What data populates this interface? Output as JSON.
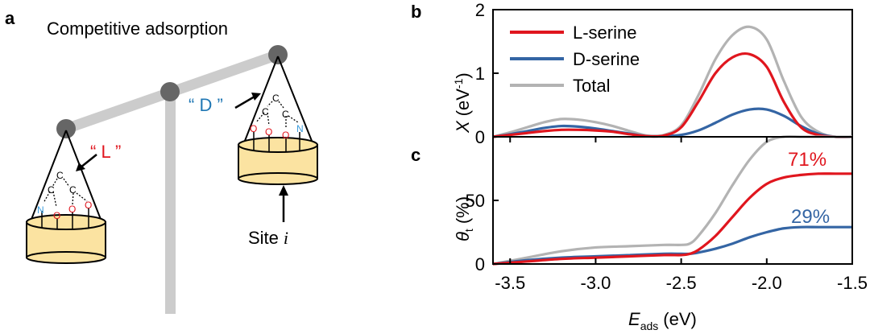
{
  "panel_labels": {
    "a": "a",
    "b": "b",
    "c": "c"
  },
  "scheme": {
    "title": "Competitive adsorption",
    "label_L": "“ L ”",
    "label_D": "“ D ”",
    "site_label": "Site",
    "site_index": "i",
    "atoms": {
      "carbon": "C",
      "oxygen": "O",
      "nitrogen": "N"
    },
    "colors": {
      "L": "#e0161e",
      "D": "#1f77b4",
      "oxygen": "#e0161e",
      "nitrogen": "#3a9bdc",
      "cup": "#fbe3a1",
      "beam": "#cccccc",
      "joint": "#666666"
    }
  },
  "chart_data": [
    {
      "panel": "b",
      "type": "line",
      "ylabel_var": "X",
      "ylabel_unit": "(eV",
      "ylabel_exp": "-1",
      "ylabel_close": ")",
      "xlim": [
        -3.6,
        -1.5
      ],
      "ylim": [
        0,
        2
      ],
      "yticks": [
        "0",
        "1",
        "2"
      ],
      "legend_position": "top-left",
      "series": [
        {
          "name": "L-serine",
          "color": "#e0161e",
          "x": [
            -3.6,
            -3.5,
            -3.4,
            -3.3,
            -3.2,
            -3.1,
            -3.0,
            -2.9,
            -2.8,
            -2.7,
            -2.6,
            -2.5,
            -2.4,
            -2.3,
            -2.2,
            -2.1,
            -2.0,
            -1.9,
            -1.8,
            -1.7,
            -1.6,
            -1.5
          ],
          "y": [
            0.0,
            0.03,
            0.06,
            0.09,
            0.11,
            0.11,
            0.1,
            0.08,
            0.04,
            0.01,
            0.02,
            0.15,
            0.55,
            1.0,
            1.25,
            1.3,
            1.1,
            0.55,
            0.15,
            0.03,
            0.0,
            0.0
          ]
        },
        {
          "name": "D-serine",
          "color": "#3465a4",
          "x": [
            -3.6,
            -3.5,
            -3.4,
            -3.3,
            -3.2,
            -3.1,
            -3.0,
            -2.9,
            -2.8,
            -2.7,
            -2.6,
            -2.5,
            -2.4,
            -2.3,
            -2.2,
            -2.1,
            -2.0,
            -1.9,
            -1.8,
            -1.7,
            -1.6,
            -1.5
          ],
          "y": [
            0.0,
            0.04,
            0.09,
            0.14,
            0.17,
            0.16,
            0.13,
            0.09,
            0.05,
            0.01,
            0.01,
            0.03,
            0.1,
            0.22,
            0.35,
            0.43,
            0.43,
            0.33,
            0.17,
            0.05,
            0.0,
            0.0
          ]
        },
        {
          "name": "Total",
          "color": "#b3b3b3",
          "x": [
            -3.6,
            -3.5,
            -3.4,
            -3.3,
            -3.2,
            -3.1,
            -3.0,
            -2.9,
            -2.8,
            -2.7,
            -2.6,
            -2.5,
            -2.4,
            -2.3,
            -2.2,
            -2.1,
            -2.0,
            -1.9,
            -1.8,
            -1.7,
            -1.6,
            -1.5
          ],
          "y": [
            0.0,
            0.07,
            0.15,
            0.23,
            0.28,
            0.27,
            0.23,
            0.17,
            0.09,
            0.02,
            0.03,
            0.18,
            0.65,
            1.22,
            1.6,
            1.73,
            1.53,
            0.88,
            0.32,
            0.08,
            0.0,
            0.0
          ]
        }
      ]
    },
    {
      "panel": "c",
      "type": "line",
      "ylabel_var": "θ",
      "ylabel_sub": "t",
      "ylabel_unit": "(%)",
      "xlabel_var": "E",
      "xlabel_sub": "ads",
      "xlabel_unit": "(eV)",
      "xlim": [
        -3.6,
        -1.5
      ],
      "ylim": [
        0,
        100
      ],
      "xticks": [
        "-3.5",
        "-3.0",
        "-2.5",
        "-2.0",
        "-1.5"
      ],
      "xtick_values": [
        -3.5,
        -3.0,
        -2.5,
        -2.0,
        -1.5
      ],
      "yticks": [
        "0",
        "50"
      ],
      "ytick_values": [
        0,
        50
      ],
      "annotations": [
        {
          "text": "71%",
          "color": "#e0161e"
        },
        {
          "text": "29%",
          "color": "#3465a4"
        }
      ],
      "series": [
        {
          "name": "L-serine",
          "color": "#e0161e",
          "x": [
            -3.6,
            -3.4,
            -3.2,
            -3.0,
            -2.8,
            -2.6,
            -2.5,
            -2.45,
            -2.4,
            -2.3,
            -2.2,
            -2.1,
            -2.0,
            -1.9,
            -1.8,
            -1.7,
            -1.6,
            -1.5
          ],
          "y": [
            0,
            2,
            4,
            5,
            6,
            7,
            7,
            8,
            11,
            22,
            37,
            52,
            63,
            68,
            70,
            71,
            71,
            71
          ]
        },
        {
          "name": "D-serine",
          "color": "#3465a4",
          "x": [
            -3.6,
            -3.4,
            -3.2,
            -3.0,
            -2.8,
            -2.6,
            -2.5,
            -2.45,
            -2.4,
            -2.3,
            -2.2,
            -2.1,
            -2.0,
            -1.9,
            -1.8,
            -1.7,
            -1.6,
            -1.5
          ],
          "y": [
            0,
            3,
            5,
            6,
            7,
            8,
            8,
            8,
            9,
            12,
            16,
            21,
            25,
            28,
            29,
            29,
            29,
            29
          ]
        },
        {
          "name": "Total",
          "color": "#b3b3b3",
          "x": [
            -3.6,
            -3.4,
            -3.2,
            -3.0,
            -2.8,
            -2.6,
            -2.5,
            -2.45,
            -2.4,
            -2.3,
            -2.2,
            -2.1,
            -2.0,
            -1.9,
            -1.8,
            -1.7,
            -1.6,
            -1.5
          ],
          "y": [
            0,
            5,
            10,
            13,
            14,
            15,
            15,
            16,
            22,
            40,
            62,
            82,
            96,
            100,
            100,
            100,
            100,
            100
          ]
        }
      ]
    }
  ]
}
